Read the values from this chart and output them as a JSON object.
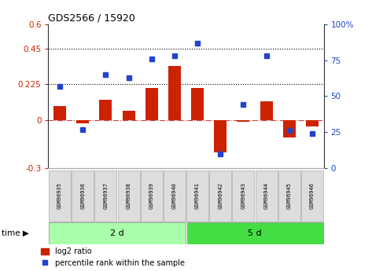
{
  "title": "GDS2566 / 15920",
  "samples": [
    "GSM96935",
    "GSM96936",
    "GSM96937",
    "GSM96938",
    "GSM96939",
    "GSM96940",
    "GSM96941",
    "GSM96942",
    "GSM96943",
    "GSM96944",
    "GSM96945",
    "GSM96946"
  ],
  "log2_ratio": [
    0.09,
    -0.02,
    0.13,
    0.06,
    0.2,
    0.34,
    0.2,
    -0.2,
    -0.01,
    0.12,
    -0.11,
    -0.04
  ],
  "pct_rank": [
    57,
    27,
    65,
    63,
    76,
    78,
    87,
    10,
    44,
    78,
    26,
    24
  ],
  "group1_samples": 6,
  "group2_samples": 6,
  "group1_label": "2 d",
  "group2_label": "5 d",
  "time_label": "time",
  "ylim_left": [
    -0.3,
    0.6
  ],
  "ylim_right": [
    0,
    100
  ],
  "yticks_left": [
    -0.3,
    0.0,
    0.225,
    0.45,
    0.6
  ],
  "ytick_labels_left": [
    "-0.3",
    "0",
    "0.225",
    "0.45",
    "0.6"
  ],
  "yticks_right": [
    0,
    25,
    50,
    75,
    100
  ],
  "ytick_labels_right": [
    "0",
    "25",
    "50",
    "75",
    "100%"
  ],
  "hline_y": [
    0.225,
    0.45
  ],
  "bar_color": "#cc2200",
  "dot_color": "#2244cc",
  "zero_line_color": "#cc4444",
  "group1_bg": "#aaffaa",
  "group2_bg": "#44dd44",
  "label_bg": "#dddddd",
  "legend_bar_label": "log2 ratio",
  "legend_dot_label": "percentile rank within the sample",
  "bar_width": 0.55
}
